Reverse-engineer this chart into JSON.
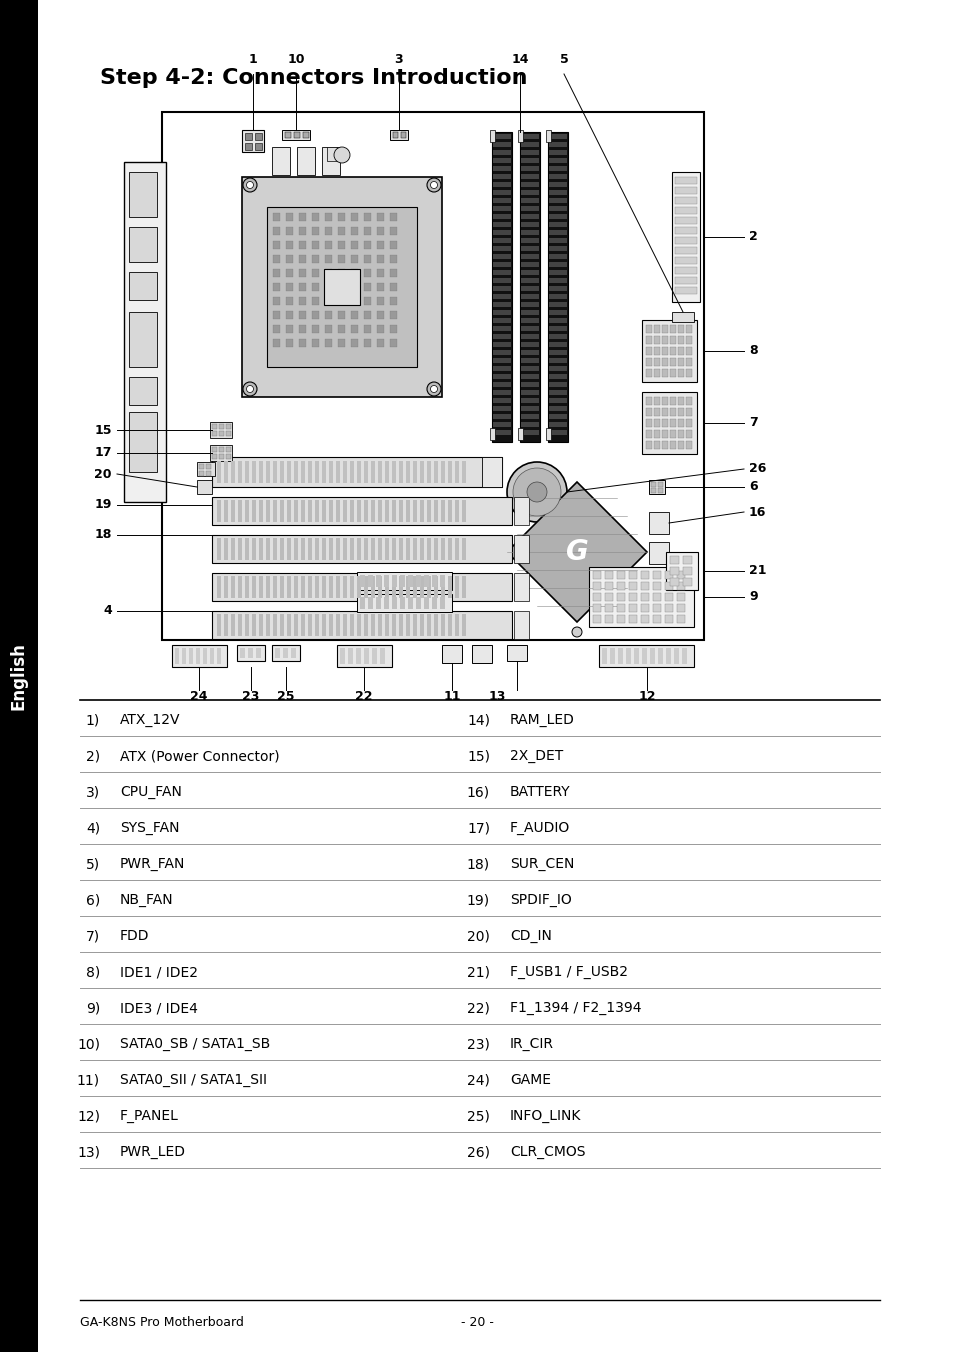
{
  "title": "Step 4-2: Connectors Introduction",
  "page_bg": "#ffffff",
  "left_bar_text": "English",
  "footer_left": "GA-K8NS Pro Motherboard",
  "footer_right": "- 20 -",
  "table_items_left": [
    [
      "1)",
      "ATX_12V"
    ],
    [
      "2)",
      "ATX (Power Connector)"
    ],
    [
      "3)",
      "CPU_FAN"
    ],
    [
      "4)",
      "SYS_FAN"
    ],
    [
      "5)",
      "PWR_FAN"
    ],
    [
      "6)",
      "NB_FAN"
    ],
    [
      "7)",
      "FDD"
    ],
    [
      "8)",
      "IDE1 / IDE2"
    ],
    [
      "9)",
      "IDE3 / IDE4"
    ],
    [
      "10)",
      "SATA0_SB / SATA1_SB"
    ],
    [
      "11)",
      "SATA0_SII / SATA1_SII"
    ],
    [
      "12)",
      "F_PANEL"
    ],
    [
      "13)",
      "PWR_LED"
    ]
  ],
  "table_items_right": [
    [
      "14)",
      "RAM_LED"
    ],
    [
      "15)",
      "2X_DET"
    ],
    [
      "16)",
      "BATTERY"
    ],
    [
      "17)",
      "F_AUDIO"
    ],
    [
      "18)",
      "SUR_CEN"
    ],
    [
      "19)",
      "SPDIF_IO"
    ],
    [
      "20)",
      "CD_IN"
    ],
    [
      "21)",
      "F_USB1 / F_USB2"
    ],
    [
      "22)",
      "F1_1394 / F2_1394"
    ],
    [
      "23)",
      "IR_CIR"
    ],
    [
      "24)",
      "GAME"
    ],
    [
      "25)",
      "INFO_LINK"
    ],
    [
      "26)",
      "CLR_CMOS"
    ]
  ]
}
